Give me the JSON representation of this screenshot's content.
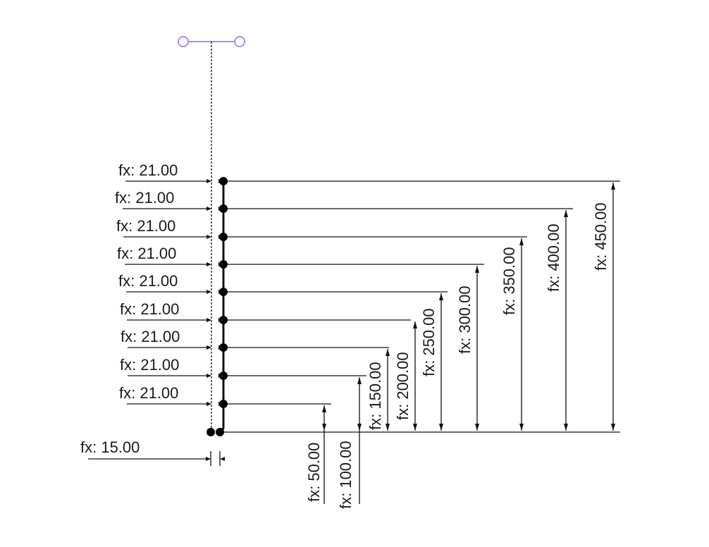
{
  "handle": {
    "color": "#a98ce6",
    "icon": "sketch-handle-icon"
  },
  "left_dimensions": [
    {
      "label": "fx: 21.00"
    },
    {
      "label": "fx: 21.00"
    },
    {
      "label": "fx: 21.00"
    },
    {
      "label": "fx: 21.00"
    },
    {
      "label": "fx: 21.00"
    },
    {
      "label": "fx: 21.00"
    },
    {
      "label": "fx: 21.00"
    },
    {
      "label": "fx: 21.00"
    },
    {
      "label": "fx: 21.00"
    }
  ],
  "bottom_dimension": {
    "label": "fx: 15.00"
  },
  "height_dimensions": [
    {
      "label": "fx: 50.00"
    },
    {
      "label": "fx: 100.00"
    },
    {
      "label": "fx: 150.00"
    },
    {
      "label": "fx: 200.00"
    },
    {
      "label": "fx: 250.00"
    },
    {
      "label": "fx: 300.00"
    },
    {
      "label": "fx: 350.00"
    },
    {
      "label": "fx: 400.00"
    },
    {
      "label": "fx: 450.00"
    }
  ]
}
